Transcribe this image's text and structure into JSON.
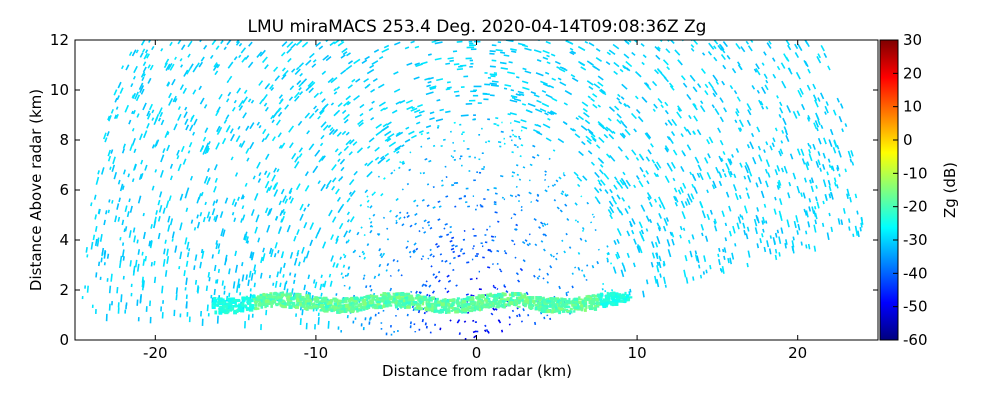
{
  "chart_data": {
    "type": "rhi",
    "title": "LMU miraMACS 253.4 Deg. 2020-04-14T09:08:36Z  Zg",
    "xlabel": "Distance from radar (km)",
    "ylabel": "Distance Above radar  (km)",
    "colorbar_label": "Zg (dB)",
    "xlim": [
      -25,
      25
    ],
    "ylim": [
      0,
      12
    ],
    "xticks": [
      -20,
      -10,
      0,
      10,
      20
    ],
    "yticks": [
      0,
      2,
      4,
      6,
      8,
      10,
      12
    ],
    "clim": [
      -60,
      30
    ],
    "cticks": [
      -60,
      -50,
      -40,
      -30,
      -20,
      -10,
      0,
      10,
      20,
      30
    ],
    "colormap": [
      "#00007f",
      "#0000ff",
      "#007fff",
      "#00ffff",
      "#7fff7f",
      "#ffff00",
      "#ff7f00",
      "#ff0000",
      "#7f0000"
    ]
  }
}
